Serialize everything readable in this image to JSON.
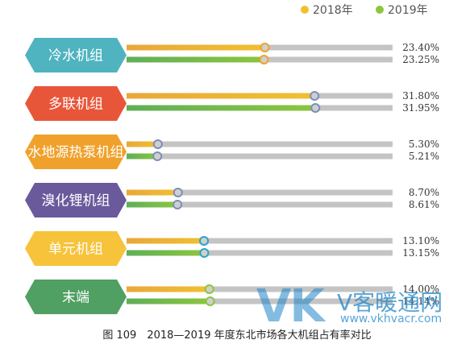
{
  "chart_data": {
    "type": "bar",
    "orientation": "horizontal",
    "title": "",
    "caption": "图 109　2018—2019 年度东北市场各大机组占有率对比",
    "categories": [
      "冷水机组",
      "多联机组",
      "水地源热泵机组",
      "溴化锂机组",
      "单元机组",
      "末端"
    ],
    "category_colors": [
      "#4fb3c0",
      "#e8563a",
      "#f0a12b",
      "#6a5a9c",
      "#f6c33a",
      "#4fa062"
    ],
    "series": [
      {
        "name": "2018年",
        "color": "#f0c030",
        "values": [
          23.4,
          31.8,
          5.3,
          8.7,
          13.1,
          14.0
        ],
        "value_labels": [
          "23.40%",
          "31.80%",
          "5.30%",
          "8.70%",
          "13.10%",
          "14.00%"
        ]
      },
      {
        "name": "2019年",
        "color": "#8cc63e",
        "values": [
          23.25,
          31.95,
          5.21,
          8.61,
          13.15,
          14.14
        ],
        "value_labels": [
          "23.25%",
          "31.95%",
          "5.21%",
          "8.61%",
          "13.15%",
          "14.14%"
        ]
      }
    ],
    "xlim": [
      0,
      45
    ],
    "legend_position": "top-right",
    "grid": false,
    "track_color": "#c4c4c4",
    "marker_colors": [
      "#f0a12b",
      "#7b8fb8",
      "#7b8fb8",
      "#7b8fb8",
      "#2ea3c8",
      "#8cc63e"
    ]
  },
  "watermark": {
    "logo": "VK",
    "name": "V客暖通网",
    "url": "www.vkhvacr.com"
  }
}
